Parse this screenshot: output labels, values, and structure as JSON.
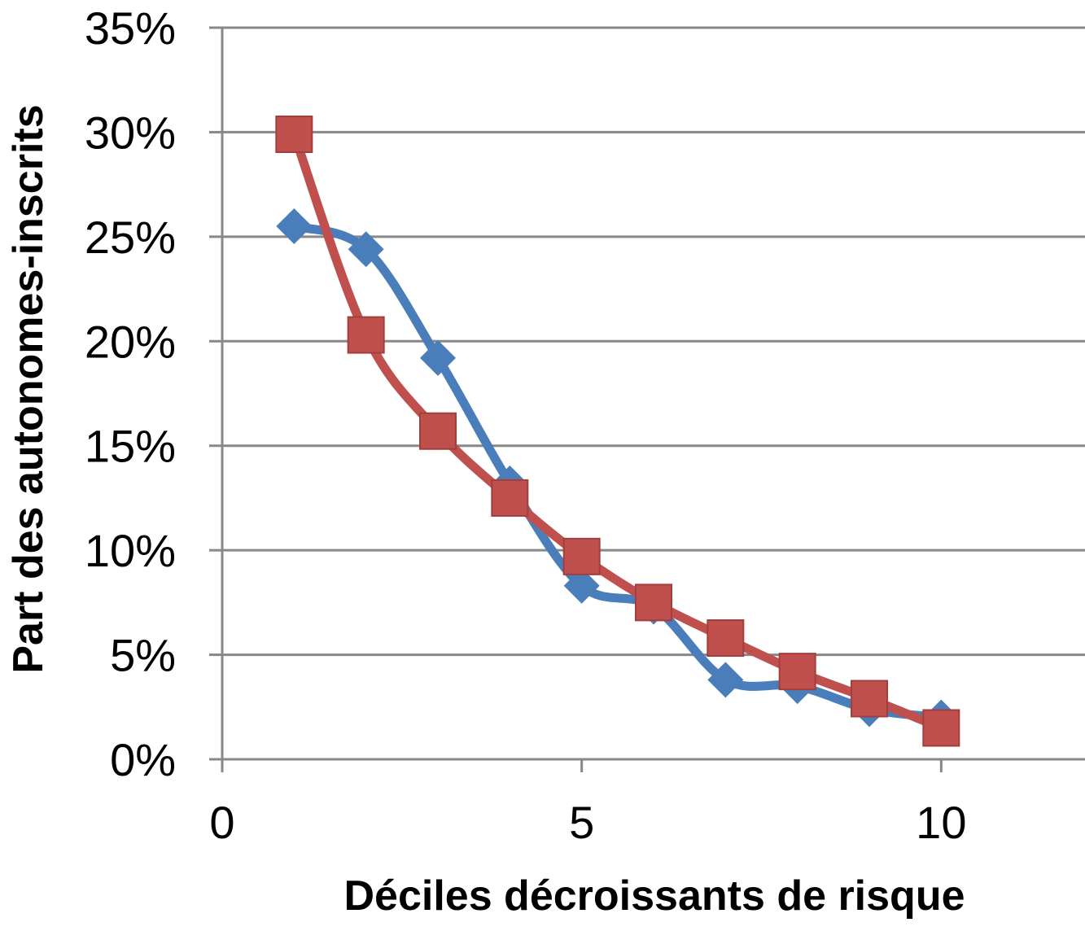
{
  "chart_data": {
    "type": "scatter",
    "title": "",
    "xlabel": "Déciles décroissants de risque",
    "ylabel": "Part des  autonomes-inscrits",
    "xlim": [
      0,
      12
    ],
    "ylim": [
      0,
      0.35
    ],
    "x_ticks": [
      0,
      5,
      10
    ],
    "x_tick_labels": [
      "0",
      "5",
      "10"
    ],
    "y_ticks": [
      0,
      0.05,
      0.1,
      0.15,
      0.2,
      0.25,
      0.3,
      0.35
    ],
    "y_tick_labels": [
      "0%",
      "5%",
      "10%",
      "15%",
      "20%",
      "25%",
      "30%",
      "35%"
    ],
    "grid": "horizontal",
    "legend": "none",
    "series": [
      {
        "marker": "diamond",
        "smooth": true,
        "color": "#4a7ebb",
        "x": [
          1,
          2,
          3,
          4,
          5,
          6,
          7,
          8,
          9,
          10
        ],
        "y": [
          0.255,
          0.244,
          0.192,
          0.132,
          0.083,
          0.073,
          0.038,
          0.035,
          0.024,
          0.02
        ]
      },
      {
        "marker": "square",
        "smooth": true,
        "color": "#c0504d",
        "x": [
          1,
          2,
          3,
          4,
          5,
          6,
          7,
          8,
          9,
          10
        ],
        "y": [
          0.299,
          0.203,
          0.157,
          0.125,
          0.097,
          0.075,
          0.058,
          0.042,
          0.029,
          0.015
        ]
      }
    ]
  }
}
